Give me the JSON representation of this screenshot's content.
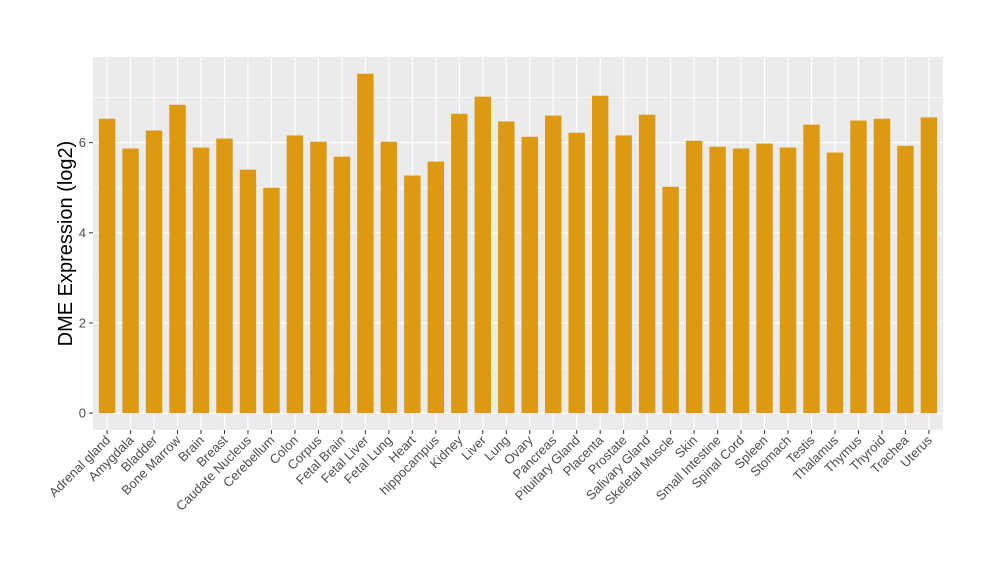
{
  "chart_data": {
    "type": "bar",
    "title": "",
    "xlabel": "",
    "ylabel": "DME Expression (log2)",
    "ylim": [
      -0.375,
      7.9
    ],
    "yticks": [
      0,
      2,
      4,
      6
    ],
    "grid": true,
    "bar_color": "#DE9912",
    "panel_color": "#EBEBEB",
    "categories": [
      "Adrenal gland",
      "Amygdala",
      "Bladder",
      "Bone Marrow",
      "Brain",
      "Breast",
      "Caudate Nucleus",
      "Cerebellum",
      "Colon",
      "Corpus",
      "Fetal Brain",
      "Fetal Liver",
      "Fetal Lung",
      "Heart",
      "hippocampus",
      "Kidney",
      "Liver",
      "Lung",
      "Ovary",
      "Pancreas",
      "Pituitary Gland",
      "Placenta",
      "Prostate",
      "Salivary Gland",
      "Skeletal Muscle",
      "Skin",
      "Small Intestine",
      "Spinal Cord",
      "Spleen",
      "Stomach",
      "Testis",
      "Thalamus",
      "Thymus",
      "Thyroid",
      "Trachea",
      "Uterus"
    ],
    "values": [
      6.53,
      5.87,
      6.27,
      6.84,
      5.89,
      6.09,
      5.4,
      5.0,
      6.16,
      6.02,
      5.69,
      7.53,
      6.02,
      5.27,
      5.58,
      6.64,
      7.02,
      6.47,
      6.13,
      6.6,
      6.22,
      7.04,
      6.16,
      6.62,
      5.02,
      6.04,
      5.91,
      5.87,
      5.98,
      5.89,
      6.4,
      5.78,
      6.49,
      6.53,
      5.93,
      6.56
    ]
  }
}
